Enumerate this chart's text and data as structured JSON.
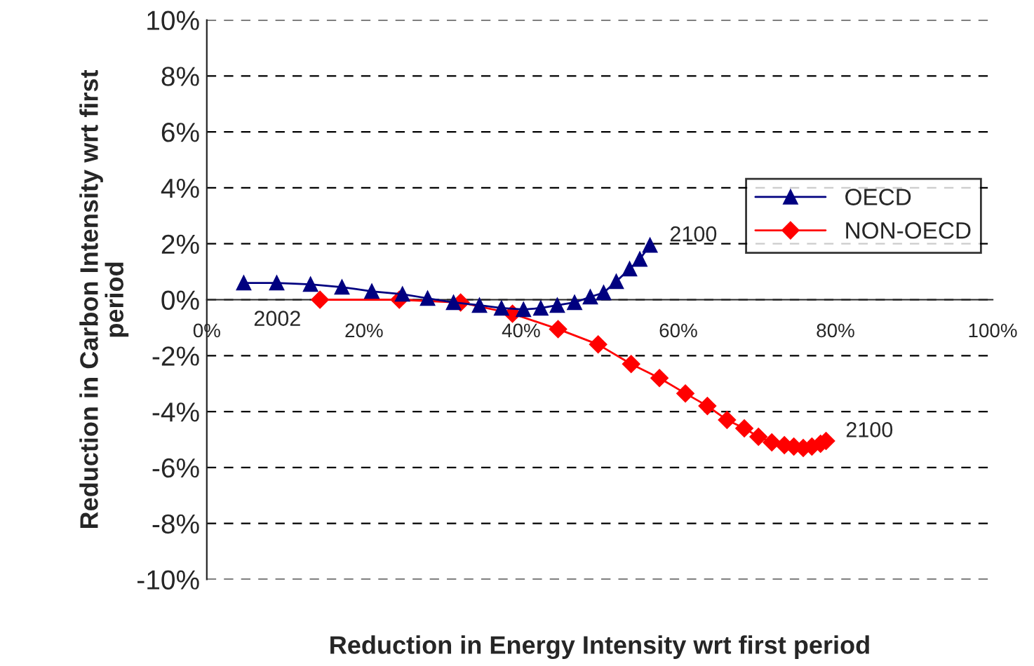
{
  "chart_data": {
    "type": "line",
    "xlabel": "Reduction in Energy Intensity wrt first period",
    "ylabel": "Reduction in Carbon Intensity wrt first\nperiod",
    "xlim": [
      0,
      100
    ],
    "ylim": [
      -10,
      10
    ],
    "xticks": [
      {
        "value": 0,
        "label": "0%"
      },
      {
        "value": 20,
        "label": "20%"
      },
      {
        "value": 40,
        "label": "40%"
      },
      {
        "value": 60,
        "label": "60%"
      },
      {
        "value": 80,
        "label": "80%"
      },
      {
        "value": 100,
        "label": "100%"
      }
    ],
    "yticks": [
      {
        "value": -10,
        "label": "-10%"
      },
      {
        "value": -8,
        "label": "-8%"
      },
      {
        "value": -6,
        "label": "-6%"
      },
      {
        "value": -4,
        "label": "-4%"
      },
      {
        "value": -2,
        "label": "-2%"
      },
      {
        "value": 0,
        "label": "0%"
      },
      {
        "value": 2,
        "label": "2%"
      },
      {
        "value": 4,
        "label": "4%"
      },
      {
        "value": 6,
        "label": "6%"
      },
      {
        "value": 8,
        "label": "8%"
      },
      {
        "value": 10,
        "label": "10%"
      }
    ],
    "grid": "y",
    "legend": "right",
    "line_style": "solid",
    "series": [
      {
        "name": "OECD",
        "color": "#000080",
        "marker": "triangle",
        "x": [
          4.7,
          8.9,
          13.2,
          17.2,
          21.0,
          24.9,
          28.1,
          31.4,
          34.7,
          37.5,
          40.3,
          42.5,
          44.6,
          46.8,
          48.8,
          50.5,
          52.1,
          53.8,
          55.1,
          56.4
        ],
        "values": [
          0.6,
          0.6,
          0.55,
          0.45,
          0.3,
          0.2,
          0.05,
          -0.1,
          -0.2,
          -0.3,
          -0.35,
          -0.3,
          -0.2,
          -0.1,
          0.1,
          0.25,
          0.65,
          1.1,
          1.45,
          1.95
        ]
      },
      {
        "name": "NON-OECD",
        "color": "#ff0000",
        "marker": "diamond",
        "x": [
          14.4,
          24.5,
          32.3,
          38.9,
          44.7,
          49.8,
          54.0,
          57.6,
          60.9,
          63.7,
          66.2,
          68.4,
          70.2,
          71.9,
          73.5,
          74.7,
          75.9,
          77.0,
          78.1,
          78.8
        ],
        "values": [
          0,
          0,
          -0.1,
          -0.5,
          -1.05,
          -1.6,
          -2.3,
          -2.8,
          -3.35,
          -3.8,
          -4.3,
          -4.6,
          -4.9,
          -5.1,
          -5.2,
          -5.25,
          -5.3,
          -5.25,
          -5.15,
          -5.05
        ]
      }
    ],
    "annotations": [
      {
        "text": "2002",
        "x": 4.7,
        "y": 0.6
      },
      {
        "text": "2100",
        "x": 56.4,
        "y": 1.95
      },
      {
        "text": "2100",
        "x": 78.8,
        "y": -5.05
      }
    ]
  }
}
